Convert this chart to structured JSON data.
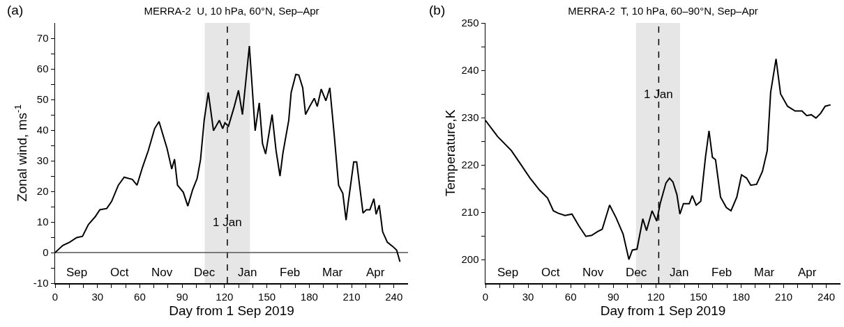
{
  "chart_data": [
    {
      "type": "line",
      "title": "MERRA-2  U, 10 hPa, 60°N, Sep–Apr",
      "xlabel": "Day from 1 Sep 2019",
      "ylabel": "Zonal wind, ms$^{-1}$",
      "x": [
        0,
        5.4,
        10.3,
        15.3,
        19.4,
        23.5,
        28.4,
        31.7,
        36.6,
        40,
        44.8,
        48.9,
        54.7,
        58,
        62,
        66,
        70.5,
        73.6,
        79.3,
        82.6,
        84.6,
        86.7,
        90.8,
        94,
        97.4,
        100.6,
        103,
        105.6,
        108.5,
        112.2,
        116.3,
        118.7,
        120.3,
        122.8,
        126.9,
        129.9,
        132.7,
        137.6,
        141.7,
        144.6,
        146.9,
        149.1,
        153.7,
        156.5,
        159.3,
        161.4,
        165.5,
        167.2,
        170.5,
        172.6,
        175.4,
        177.4,
        180.3,
        183.6,
        185.7,
        188.5,
        191.8,
        194.6,
        197.6,
        200.8,
        203.8,
        206.1,
        207.4,
        211.5,
        213.6,
        218.1,
        220.5,
        223,
        225.8,
        227.4,
        229.6,
        232,
        235.3,
        239.4,
        241.9,
        244.3
      ],
      "series": [
        {
          "color": "#000000",
          "values": [
            0,
            2.3,
            3.4,
            4.9,
            5.3,
            9.1,
            11.7,
            14,
            14.4,
            16.7,
            22,
            24.6,
            23.9,
            22,
            28,
            33.3,
            40.5,
            42.8,
            34,
            27.3,
            30.5,
            22,
            19.7,
            15.2,
            20.5,
            24.2,
            30.3,
            43.2,
            52.3,
            39.8,
            43.2,
            40.5,
            42.4,
            41.3,
            47.7,
            53,
            45.1,
            67.5,
            39.8,
            48.9,
            35.6,
            32.2,
            45.1,
            33.3,
            25,
            32.6,
            43.2,
            52.3,
            58.2,
            58,
            53.8,
            45.1,
            47.7,
            50.4,
            47.7,
            53.4,
            49.6,
            53.8,
            39,
            22,
            19.3,
            10.6,
            15.5,
            29.6,
            29.6,
            12.9,
            14,
            14,
            17.6,
            12.5,
            15.5,
            6.8,
            3.4,
            1.9,
            0.8,
            -3
          ]
        }
      ],
      "xlim": [
        0,
        250
      ],
      "xticks": [
        0,
        {
          "value": 10,
          "label": null
        },
        {
          "value": 20,
          "label": null
        },
        30,
        {
          "value": 40,
          "label": null
        },
        {
          "value": 50,
          "label": null
        },
        60,
        {
          "value": 70,
          "label": null
        },
        {
          "value": 80,
          "label": null
        },
        90,
        {
          "value": 100,
          "label": null
        },
        {
          "value": 110,
          "label": null
        },
        120,
        {
          "value": 130,
          "label": null
        },
        {
          "value": 140,
          "label": null
        },
        150,
        {
          "value": 160,
          "label": null
        },
        {
          "value": 170,
          "label": null
        },
        180,
        {
          "value": 190,
          "label": null
        },
        {
          "value": 200,
          "label": null
        },
        210,
        {
          "value": 220,
          "label": null
        },
        {
          "value": 230,
          "label": null
        },
        240
      ],
      "ylim": [
        -10,
        75
      ],
      "yticks": [
        -10,
        {
          "value": -5,
          "label": null
        },
        0,
        {
          "value": 5,
          "label": null
        },
        10,
        {
          "value": 15,
          "label": null
        },
        20,
        {
          "value": 25,
          "label": null
        },
        30,
        {
          "value": 35,
          "label": null
        },
        40,
        {
          "value": 45,
          "label": null
        },
        50,
        {
          "value": 55,
          "label": null
        },
        60,
        {
          "value": 65,
          "label": null
        },
        70
      ],
      "bands": [
        {
          "axis": "x",
          "from": 106,
          "to": 138,
          "color": "#e6e6e6"
        }
      ],
      "ref_lines": [
        {
          "axis": "x",
          "value": 122,
          "color": "#000000",
          "line_style": "dashed"
        },
        {
          "axis": "y",
          "value": 0,
          "color": "#555555",
          "line_style": "solid"
        }
      ],
      "annotations": [
        "(a)",
        {
          "text": "1 Jan",
          "x": 122,
          "y": 10
        },
        "Sep",
        "Oct",
        "Nov",
        "Dec",
        "Jan",
        "Feb",
        "Mar",
        "Apr"
      ],
      "grid": false
    },
    {
      "type": "line",
      "title": "MERRA-2  T, 10 hPa, 60–90°N, Sep–Apr",
      "xlabel": "Day from 1 Sep 2019",
      "ylabel": "Temperature,K",
      "x": [
        0,
        8.5,
        18.3,
        24.9,
        31.4,
        38,
        43.7,
        47.8,
        51.1,
        56,
        60.9,
        65.8,
        70.7,
        74.8,
        78.9,
        82.2,
        87.4,
        92,
        96.9,
        101,
        103.4,
        106.7,
        110.8,
        113.4,
        117.3,
        120.6,
        123,
        127.1,
        129.6,
        132,
        134.8,
        136.9,
        139.4,
        143.5,
        145.6,
        148.4,
        151.6,
        154.9,
        157.4,
        159.8,
        162,
        165.5,
        169.6,
        172.9,
        177,
        180.3,
        183.9,
        186.8,
        190.9,
        195,
        198.4,
        200.8,
        204.6,
        207.8,
        212.7,
        218,
        222.9,
        226.2,
        229.4,
        232.7,
        236,
        239.2,
        243
      ],
      "series": [
        {
          "color": "#000000",
          "values": [
            229.4,
            226,
            223,
            220.1,
            217.2,
            214.7,
            213,
            210.3,
            209.8,
            209.3,
            209.6,
            207.1,
            204.9,
            205.1,
            205.9,
            206.4,
            211.5,
            208.8,
            205.4,
            200,
            202,
            202.2,
            208.6,
            206.1,
            210.3,
            208.1,
            211.8,
            216.2,
            217.2,
            216.4,
            213.7,
            209.6,
            211.8,
            211.8,
            213.5,
            211.5,
            212.3,
            221.6,
            227.2,
            221.6,
            221.1,
            213.2,
            211,
            210.3,
            213.2,
            217.9,
            217.2,
            215.7,
            215.9,
            218.6,
            223,
            235.3,
            242.4,
            235,
            232.4,
            231.4,
            231.4,
            230.4,
            230.6,
            229.9,
            230.9,
            232.4,
            232.7
          ]
        }
      ],
      "xlim": [
        0,
        250
      ],
      "xticks": [
        0,
        {
          "value": 10,
          "label": null
        },
        {
          "value": 20,
          "label": null
        },
        30,
        {
          "value": 40,
          "label": null
        },
        {
          "value": 50,
          "label": null
        },
        60,
        {
          "value": 70,
          "label": null
        },
        {
          "value": 80,
          "label": null
        },
        90,
        {
          "value": 100,
          "label": null
        },
        {
          "value": 110,
          "label": null
        },
        120,
        {
          "value": 130,
          "label": null
        },
        {
          "value": 140,
          "label": null
        },
        150,
        {
          "value": 160,
          "label": null
        },
        {
          "value": 170,
          "label": null
        },
        180,
        {
          "value": 190,
          "label": null
        },
        {
          "value": 200,
          "label": null
        },
        210,
        {
          "value": 220,
          "label": null
        },
        {
          "value": 230,
          "label": null
        },
        240
      ],
      "ylim": [
        195,
        250
      ],
      "yticks": [
        200,
        {
          "value": 205,
          "label": null
        },
        210,
        {
          "value": 215,
          "label": null
        },
        220,
        {
          "value": 225,
          "label": null
        },
        230,
        {
          "value": 235,
          "label": null
        },
        240,
        {
          "value": 245,
          "label": null
        },
        250
      ],
      "bands": [
        {
          "axis": "x",
          "from": 106,
          "to": 137,
          "color": "#e6e6e6"
        }
      ],
      "ref_lines": [
        {
          "axis": "x",
          "value": 122,
          "color": "#000000",
          "line_style": "dashed"
        }
      ],
      "annotations": [
        "(b)",
        {
          "text": "1 Jan",
          "x": 122,
          "y": 235
        },
        "Sep",
        "Oct",
        "Nov",
        "Dec",
        "Jan",
        "Feb",
        "Mar",
        "Apr"
      ],
      "grid": false
    }
  ]
}
